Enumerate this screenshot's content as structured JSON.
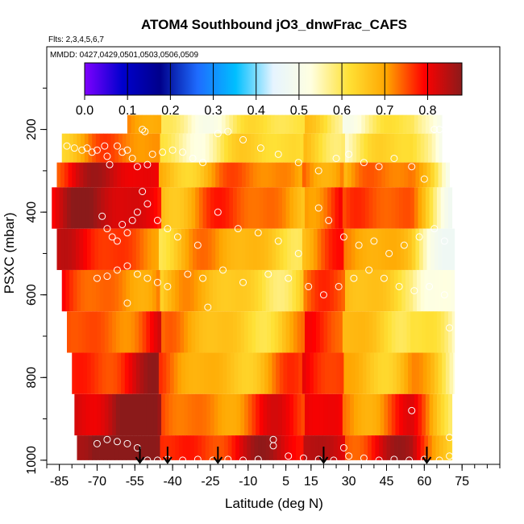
{
  "chart_data": {
    "type": "heatmap",
    "title": "ATOM4 Southbound jO3_dnwFrac_CAFS",
    "subtitle_flights": "Flts: 2,3,4,5,6,7",
    "subtitle_dates": "MMDD: 0427,0429,0501,0503,0506,0509",
    "xlabel": "Latitude (deg N)",
    "ylabel": "PSXC (mbar)",
    "xlim": [
      -90,
      90
    ],
    "ylim": [
      1010,
      0
    ],
    "x_ticks": [
      -85,
      -70,
      -55,
      -40,
      -25,
      -10,
      5,
      15,
      30,
      45,
      60,
      75
    ],
    "x_tick_labels": [
      "-85",
      "-70",
      "-55",
      "-40",
      "-25",
      "-10",
      "5",
      "15",
      "30",
      "45",
      "60",
      "75"
    ],
    "y_ticks": [
      200,
      400,
      600,
      800,
      1000
    ],
    "y_tick_labels": [
      "200",
      "400",
      "600",
      "800",
      "1000"
    ],
    "colorbar": {
      "range": [
        0.0,
        0.88
      ],
      "ticks": [
        0.0,
        0.1,
        0.2,
        0.3,
        0.4,
        0.5,
        0.6,
        0.7,
        0.8
      ],
      "tick_labels": [
        "0.0",
        "0.1",
        "0.2",
        "0.3",
        "0.4",
        "0.5",
        "0.6",
        "0.7",
        "0.8"
      ],
      "colors": [
        "#7f00ff",
        "#0000cd",
        "#00008b",
        "#1e6cff",
        "#00bfff",
        "#e6f4ff",
        "#ffffe0",
        "#ffe135",
        "#ffa500",
        "#ff0000",
        "#8b1a1a"
      ]
    },
    "pressure_bands": [
      {
        "p_top": 210,
        "p_bottom": 280,
        "lat_start": -84,
        "lat_end": 67,
        "mean": 0.6
      },
      {
        "p_top": 280,
        "p_bottom": 340,
        "lat_start": -86,
        "lat_end": 70,
        "mean": 0.7
      },
      {
        "p_top": 340,
        "p_bottom": 440,
        "lat_start": -88,
        "lat_end": 71,
        "mean": 0.72
      },
      {
        "p_top": 440,
        "p_bottom": 540,
        "lat_start": -86,
        "lat_end": 72,
        "mean": 0.67
      },
      {
        "p_top": 540,
        "p_bottom": 640,
        "lat_start": -84,
        "lat_end": 72,
        "mean": 0.65
      },
      {
        "p_top": 640,
        "p_bottom": 740,
        "lat_start": -82,
        "lat_end": 72,
        "mean": 0.67
      },
      {
        "p_top": 740,
        "p_bottom": 840,
        "lat_start": -80,
        "lat_end": 72,
        "mean": 0.7
      },
      {
        "p_top": 840,
        "p_bottom": 940,
        "lat_start": -79,
        "lat_end": 71,
        "mean": 0.75
      },
      {
        "p_top": 940,
        "p_bottom": 1000,
        "lat_start": -78,
        "lat_end": 71,
        "mean": 0.8
      }
    ],
    "top_band": {
      "p_top": 165,
      "p_bottom": 210,
      "lat_start": -58,
      "lat_end": 67,
      "mean": 0.58
    },
    "observation_points": [
      [
        -82,
        240
      ],
      [
        -79,
        245
      ],
      [
        -76,
        250
      ],
      [
        -74,
        245
      ],
      [
        -72,
        255
      ],
      [
        -70,
        250
      ],
      [
        -67,
        240
      ],
      [
        -66,
        265
      ],
      [
        -65,
        285
      ],
      [
        -62,
        240
      ],
      [
        -60,
        255
      ],
      [
        -58,
        250
      ],
      [
        -56,
        270
      ],
      [
        -54,
        290
      ],
      [
        -52,
        200
      ],
      [
        -51,
        205
      ],
      [
        -50,
        285
      ],
      [
        -48,
        260
      ],
      [
        -44,
        255
      ],
      [
        -40,
        250
      ],
      [
        -36,
        255
      ],
      [
        -32,
        270
      ],
      [
        -28,
        280
      ],
      [
        -22,
        210
      ],
      [
        -18,
        205
      ],
      [
        -12,
        225
      ],
      [
        -5,
        245
      ],
      [
        2,
        260
      ],
      [
        10,
        280
      ],
      [
        18,
        300
      ],
      [
        25,
        270
      ],
      [
        30,
        260
      ],
      [
        36,
        280
      ],
      [
        42,
        290
      ],
      [
        48,
        270
      ],
      [
        55,
        290
      ],
      [
        60,
        320
      ],
      [
        64,
        200
      ],
      [
        66,
        200
      ],
      [
        -68,
        410
      ],
      [
        -66,
        440
      ],
      [
        -64,
        460
      ],
      [
        -62,
        470
      ],
      [
        -60,
        430
      ],
      [
        -58,
        450
      ],
      [
        -56,
        420
      ],
      [
        -54,
        400
      ],
      [
        -52,
        350
      ],
      [
        -50,
        380
      ],
      [
        -46,
        420
      ],
      [
        -42,
        440
      ],
      [
        -38,
        460
      ],
      [
        -30,
        480
      ],
      [
        -22,
        400
      ],
      [
        -14,
        440
      ],
      [
        -6,
        450
      ],
      [
        2,
        470
      ],
      [
        10,
        500
      ],
      [
        18,
        390
      ],
      [
        22,
        420
      ],
      [
        28,
        460
      ],
      [
        34,
        480
      ],
      [
        40,
        470
      ],
      [
        46,
        500
      ],
      [
        52,
        480
      ],
      [
        58,
        460
      ],
      [
        64,
        440
      ],
      [
        68,
        470
      ],
      [
        -70,
        560
      ],
      [
        -66,
        555
      ],
      [
        -62,
        540
      ],
      [
        -58,
        530
      ],
      [
        -54,
        550
      ],
      [
        -50,
        560
      ],
      [
        -46,
        570
      ],
      [
        -42,
        580
      ],
      [
        -34,
        550
      ],
      [
        -28,
        560
      ],
      [
        -20,
        540
      ],
      [
        -12,
        570
      ],
      [
        -2,
        550
      ],
      [
        6,
        560
      ],
      [
        14,
        580
      ],
      [
        20,
        600
      ],
      [
        26,
        580
      ],
      [
        32,
        560
      ],
      [
        38,
        540
      ],
      [
        44,
        560
      ],
      [
        50,
        580
      ],
      [
        56,
        590
      ],
      [
        62,
        580
      ],
      [
        68,
        600
      ],
      [
        -58,
        620
      ],
      [
        -26,
        630
      ],
      [
        70,
        680
      ],
      [
        55,
        880
      ],
      [
        70,
        945
      ],
      [
        -70,
        960
      ],
      [
        -66,
        950
      ],
      [
        -62,
        955
      ],
      [
        -58,
        960
      ],
      [
        -54,
        970
      ],
      [
        -50,
        1000
      ],
      [
        -46,
        1000
      ],
      [
        -42,
        998
      ],
      [
        -36,
        1000
      ],
      [
        -30,
        998
      ],
      [
        -24,
        1000
      ],
      [
        -18,
        998
      ],
      [
        -12,
        1000
      ],
      [
        -6,
        998
      ],
      [
        0,
        950
      ],
      [
        0,
        965
      ],
      [
        6,
        990
      ],
      [
        12,
        995
      ],
      [
        18,
        998
      ],
      [
        24,
        1000
      ],
      [
        28,
        970
      ],
      [
        30,
        990
      ],
      [
        36,
        995
      ],
      [
        42,
        1000
      ],
      [
        48,
        998
      ],
      [
        54,
        1000
      ],
      [
        60,
        998
      ],
      [
        66,
        1000
      ],
      [
        70,
        990
      ]
    ],
    "arrows_lat": [
      -53,
      -42,
      -22,
      20,
      61
    ]
  }
}
